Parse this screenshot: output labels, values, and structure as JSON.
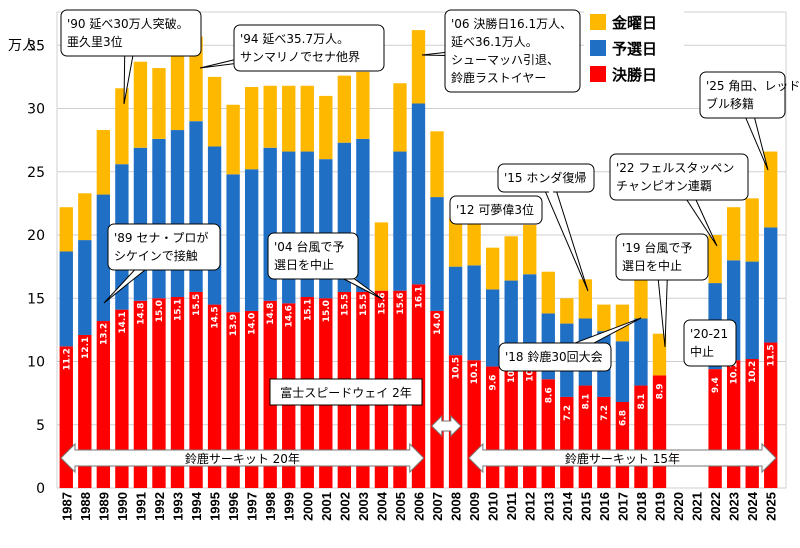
{
  "chart_data": {
    "type": "bar",
    "stacked": true,
    "y_unit": "万人",
    "ylim": [
      0,
      37
    ],
    "y_ticks": [
      0,
      5,
      10,
      15,
      20,
      25,
      30,
      35
    ],
    "grid": true,
    "legend_position": "top-right",
    "categories": [
      "1987",
      "1988",
      "1989",
      "1990",
      "1991",
      "1992",
      "1993",
      "1994",
      "1995",
      "1996",
      "1997",
      "1998",
      "1999",
      "2000",
      "2001",
      "2002",
      "2003",
      "2004",
      "2005",
      "2006",
      "2007",
      "2008",
      "2009",
      "2010",
      "2011",
      "2012",
      "2013",
      "2014",
      "2015",
      "2016",
      "2017",
      "2018",
      "2019",
      "2020",
      "2021",
      "2022",
      "2023",
      "2024",
      "2025"
    ],
    "series": [
      {
        "name": "決勝日",
        "color": "#ff0000",
        "values": [
          11.2,
          12.1,
          13.2,
          14.1,
          14.8,
          15.0,
          15.1,
          15.5,
          14.5,
          13.9,
          14.0,
          14.8,
          14.6,
          15.1,
          15.0,
          15.5,
          15.5,
          15.6,
          15.6,
          16.1,
          14.0,
          10.5,
          10.1,
          9.6,
          10.2,
          10.3,
          8.6,
          7.2,
          8.1,
          7.2,
          6.8,
          8.1,
          8.9,
          0,
          0,
          9.4,
          10.1,
          10.2,
          11.5
        ]
      },
      {
        "name": "予選日",
        "color": "#1f6fc5",
        "values": [
          7.5,
          7.5,
          10.0,
          11.5,
          12.1,
          12.6,
          13.2,
          13.5,
          12.5,
          10.9,
          11.2,
          12.1,
          12.0,
          11.5,
          11.0,
          11.8,
          12.1,
          0,
          11.0,
          14.3,
          9.0,
          7.0,
          7.5,
          6.1,
          6.2,
          6.6,
          5.2,
          5.8,
          5.3,
          5.2,
          4.8,
          5.3,
          0,
          0,
          0,
          6.8,
          7.9,
          7.7,
          9.1
        ]
      },
      {
        "name": "金曜日",
        "color": "#ffb800",
        "values": [
          3.5,
          3.7,
          5.1,
          6.0,
          6.8,
          5.6,
          6.7,
          6.7,
          5.5,
          5.5,
          6.5,
          4.9,
          5.2,
          5.2,
          5.0,
          5.3,
          5.3,
          5.4,
          5.4,
          5.8,
          5.2,
          3.8,
          3.4,
          3.3,
          3.5,
          3.9,
          3.3,
          2.0,
          3.1,
          2.1,
          2.9,
          3.1,
          3.3,
          0,
          0,
          3.8,
          4.2,
          5.0,
          6.0
        ]
      }
    ],
    "annotations": [
      {
        "id": "a1990",
        "lines": [
          "'90 延べ30万人突破。",
          "亜久里3位"
        ],
        "year": "1990"
      },
      {
        "id": "a1994",
        "lines": [
          "'94 延べ35.7万人。",
          "サンマリノでセナ他界"
        ],
        "year": "1994"
      },
      {
        "id": "a2006",
        "lines": [
          "'06 決勝日16.1万人、",
          "延べ36.1万人。",
          "シューマッハ引退、",
          "鈴鹿ラストイヤー"
        ],
        "year": "2006"
      },
      {
        "id": "a1989",
        "lines": [
          "'89 セナ・プロが",
          "シケインで接触"
        ],
        "year": "1989"
      },
      {
        "id": "a2004",
        "lines": [
          "'04 台風で予",
          "選日を中止"
        ],
        "year": "2004"
      },
      {
        "id": "a2012",
        "lines": [
          "'12 可夢偉3位"
        ],
        "year": "2012"
      },
      {
        "id": "a2015",
        "lines": [
          "'15 ホンダ復帰"
        ],
        "year": "2015"
      },
      {
        "id": "a2018",
        "lines": [
          "'18 鈴鹿30回大会"
        ],
        "year": "2018"
      },
      {
        "id": "a2019",
        "lines": [
          "'19 台風で予",
          "選日を中止"
        ],
        "year": "2019"
      },
      {
        "id": "a2020",
        "lines": [
          "'20-21",
          "中止"
        ],
        "year": "2021"
      },
      {
        "id": "a2022",
        "lines": [
          "'22 フェルスタッペン",
          "チャンピオン連覇"
        ],
        "year": "2022"
      },
      {
        "id": "a2025",
        "lines": [
          "'25 角田、レッド",
          "ブル移籍"
        ],
        "year": "2025"
      }
    ],
    "ranges": [
      {
        "label": "鈴鹿サーキット 20年",
        "from": "1987",
        "to": "2006"
      },
      {
        "label": "富士スピードウェイ 2年",
        "from": "2007",
        "to": "2008"
      },
      {
        "label": "鈴鹿サーキット 15年",
        "from": "2009",
        "to": "2025"
      }
    ]
  }
}
